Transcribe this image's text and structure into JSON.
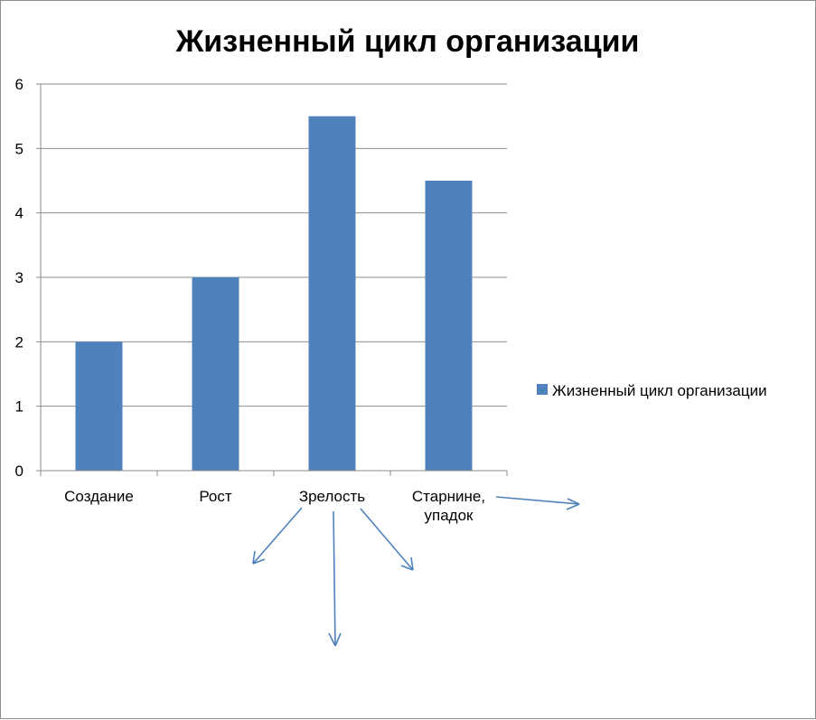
{
  "chart_data": {
    "type": "bar",
    "title": "Жизненный цикл организации",
    "categories": [
      "Создание",
      "Рост",
      "Зрелость",
      "Старнине, упадок"
    ],
    "series": [
      {
        "name": "Жизненный цикл организации",
        "values": [
          2,
          3,
          5.5,
          4.5
        ],
        "color": "#4f81bd"
      }
    ],
    "ylim": [
      0,
      6
    ],
    "yticks": [
      0,
      1,
      2,
      3,
      4,
      5,
      6
    ],
    "grid": true,
    "legend": "right",
    "annotations": "hand-drawn blue arrows below the category labels"
  }
}
